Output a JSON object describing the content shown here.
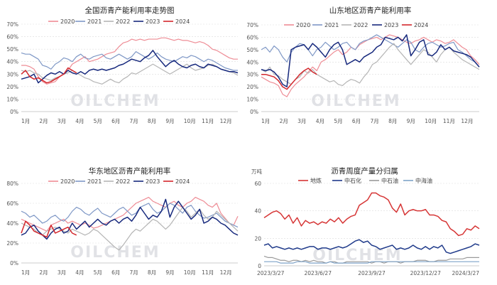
{
  "watermark": "OILCHEM",
  "colors": {
    "s2020": "#ee8c95",
    "s2021": "#7f98c6",
    "s2022": "#b5b5b5",
    "s2023": "#17297d",
    "s2024": "#d3262b",
    "dilian": "#d63535",
    "zhongshihua": "#1f3a8a",
    "zhongshiyou": "#9a9a9a",
    "zhonghaiyou": "#7fa3c8"
  },
  "chart_data": [
    {
      "id": "national",
      "type": "line",
      "title": "全国沥青产能利用率走势图",
      "x_tick_labels": [
        "1月",
        "2月",
        "3月",
        "4月",
        "5月",
        "6月",
        "7月",
        "8月",
        "9月",
        "10月",
        "11月",
        "12月"
      ],
      "x_range": [
        0,
        51
      ],
      "y_ticks": [
        "0%",
        "10%",
        "20%",
        "30%",
        "40%",
        "50%",
        "60%",
        "70%"
      ],
      "ylim": [
        0,
        70
      ],
      "legend": [
        "2020",
        "2021",
        "2022",
        "2023",
        "2024"
      ],
      "series": [
        {
          "name": "2020",
          "values": [
            37,
            37,
            36,
            34,
            28,
            24,
            22,
            23,
            24,
            28,
            30,
            33,
            38,
            40,
            42,
            44,
            40,
            41,
            42,
            44,
            46,
            47,
            48,
            52,
            55,
            56,
            58,
            57,
            58,
            57,
            58,
            58,
            58,
            59,
            59,
            58,
            57,
            58,
            57,
            57,
            56,
            55,
            56,
            55,
            53,
            50,
            49,
            47,
            45,
            43,
            42,
            42
          ]
        },
        {
          "name": "2021",
          "values": [
            47,
            46,
            46,
            44,
            42,
            37,
            36,
            34,
            38,
            40,
            43,
            42,
            40,
            44,
            46,
            43,
            42,
            44,
            45,
            46,
            43,
            42,
            44,
            46,
            44,
            42,
            44,
            48,
            46,
            44,
            42,
            44,
            47,
            44,
            42,
            41,
            40,
            42,
            44,
            43,
            45,
            44,
            42,
            40,
            42,
            41,
            39,
            37,
            35,
            34,
            33,
            33
          ]
        },
        {
          "name": "2022",
          "values": [
            33,
            32,
            33,
            31,
            30,
            27,
            26,
            25,
            27,
            28,
            30,
            31,
            33,
            31,
            29,
            27,
            26,
            24,
            23,
            22,
            24,
            26,
            24,
            23,
            26,
            28,
            31,
            30,
            32,
            34,
            36,
            38,
            36,
            34,
            32,
            30,
            32,
            34,
            36,
            38,
            35,
            33,
            34,
            35,
            37,
            38,
            36,
            34,
            33,
            32,
            31,
            29
          ]
        },
        {
          "name": "2023",
          "values": [
            26,
            27,
            28,
            30,
            23,
            26,
            29,
            31,
            30,
            32,
            30,
            33,
            31,
            30,
            32,
            30,
            33,
            34,
            33,
            34,
            33,
            34,
            35,
            37,
            38,
            40,
            42,
            41,
            40,
            43,
            45,
            49,
            44,
            40,
            36,
            39,
            41,
            38,
            36,
            35,
            37,
            38,
            36,
            35,
            38,
            37,
            36,
            34,
            33,
            32,
            32,
            31
          ]
        },
        {
          "name": "2024",
          "values": [
            30,
            33,
            28,
            26,
            27,
            25,
            23,
            24,
            26,
            28,
            30,
            35,
            33,
            31
          ]
        }
      ]
    },
    {
      "id": "shandong",
      "type": "line",
      "title": "山东地区沥青产能利用率",
      "x_tick_labels": [
        "1月",
        "2月",
        "3月",
        "4月",
        "5月",
        "6月",
        "7月",
        "8月",
        "9月",
        "10月",
        "11月",
        "12月"
      ],
      "x_range": [
        0,
        51
      ],
      "y_ticks": [
        "0%",
        "10%",
        "20%",
        "30%",
        "40%",
        "50%",
        "60%",
        "70%"
      ],
      "ylim": [
        0,
        70
      ],
      "legend": [
        "2020",
        "2021",
        "2022",
        "2023",
        "2024"
      ],
      "series": [
        {
          "name": "2020",
          "values": [
            28,
            26,
            24,
            23,
            21,
            14,
            12,
            18,
            22,
            25,
            28,
            32,
            36,
            33,
            40,
            42,
            45,
            48,
            50,
            46,
            48,
            52,
            50,
            54,
            56,
            58,
            59,
            60,
            58,
            60,
            62,
            61,
            60,
            58,
            56,
            55,
            57,
            58,
            60,
            58,
            56,
            58,
            57,
            55,
            56,
            58,
            55,
            52,
            50,
            45,
            42,
            38
          ]
        },
        {
          "name": "2021",
          "values": [
            50,
            52,
            48,
            53,
            50,
            44,
            40,
            48,
            52,
            55,
            54,
            50,
            45,
            50,
            52,
            56,
            53,
            50,
            52,
            55,
            56,
            52,
            50,
            55,
            57,
            58,
            60,
            62,
            60,
            58,
            56,
            54,
            52,
            55,
            58,
            56,
            50,
            48,
            52,
            55,
            56,
            54,
            52,
            53,
            55,
            56,
            50,
            48,
            45,
            42,
            40,
            36
          ]
        },
        {
          "name": "2022",
          "values": [
            34,
            32,
            36,
            30,
            29,
            26,
            24,
            22,
            26,
            28,
            33,
            31,
            34,
            30,
            28,
            26,
            24,
            25,
            22,
            21,
            24,
            26,
            25,
            23,
            28,
            32,
            38,
            40,
            44,
            48,
            52,
            55,
            50,
            46,
            42,
            38,
            42,
            46,
            50,
            48,
            44,
            40,
            46,
            50,
            52,
            48,
            45,
            42,
            40,
            38,
            36,
            34
          ]
        },
        {
          "name": "2023",
          "values": [
            34,
            33,
            34,
            32,
            28,
            22,
            20,
            50,
            52,
            53,
            54,
            50,
            55,
            52,
            48,
            44,
            50,
            54,
            56,
            50,
            38,
            40,
            42,
            40,
            44,
            46,
            48,
            52,
            54,
            60,
            59,
            58,
            60,
            57,
            62,
            45,
            50,
            56,
            58,
            46,
            45,
            48,
            54,
            50,
            52,
            49,
            48,
            47,
            46,
            44,
            40,
            36
          ]
        },
        {
          "name": "2024",
          "values": [
            30,
            30,
            29,
            28,
            25,
            20,
            18,
            22,
            26,
            30,
            33,
            35,
            32,
            30
          ]
        }
      ]
    },
    {
      "id": "huadong",
      "type": "line",
      "title": "华东地区沥青产能利用率",
      "x_tick_labels": [
        "1月",
        "2月",
        "3月",
        "4月",
        "5月",
        "6月",
        "7月",
        "8月",
        "9月",
        "10月",
        "11月",
        "12月"
      ],
      "x_range": [
        0,
        51
      ],
      "y_ticks": [
        "0%",
        "20%",
        "40%",
        "60%",
        "80%"
      ],
      "ylim": [
        0,
        80
      ],
      "legend": [
        "2020",
        "2021",
        "2022",
        "2023",
        "2024"
      ],
      "series": [
        {
          "name": "2020",
          "values": [
            44,
            42,
            40,
            38,
            36,
            34,
            32,
            38,
            40,
            42,
            44,
            40,
            42,
            40,
            38,
            40,
            38,
            35,
            36,
            38,
            40,
            42,
            44,
            46,
            48,
            52,
            56,
            60,
            62,
            64,
            66,
            62,
            60,
            58,
            56,
            60,
            62,
            58,
            56,
            60,
            62,
            66,
            64,
            62,
            58,
            56,
            60,
            50,
            45,
            40,
            38,
            47
          ]
        },
        {
          "name": "2021",
          "values": [
            52,
            50,
            46,
            48,
            44,
            40,
            42,
            46,
            48,
            44,
            42,
            46,
            52,
            56,
            54,
            50,
            48,
            52,
            55,
            50,
            48,
            46,
            50,
            54,
            56,
            52,
            48,
            50,
            56,
            58,
            60,
            54,
            50,
            52,
            56,
            60,
            58,
            54,
            50,
            56,
            58,
            52,
            48,
            45,
            46,
            48,
            50,
            46,
            42,
            40,
            38,
            36
          ]
        },
        {
          "name": "2022",
          "values": [
            40,
            38,
            36,
            34,
            30,
            28,
            32,
            34,
            36,
            34,
            32,
            30,
            34,
            32,
            30,
            28,
            30,
            34,
            32,
            28,
            24,
            20,
            16,
            13,
            18,
            24,
            30,
            34,
            32,
            36,
            40,
            44,
            42,
            38,
            34,
            38,
            44,
            50,
            56,
            52,
            46,
            50,
            54,
            48,
            44,
            46,
            52,
            48,
            44,
            40,
            36,
            32
          ]
        },
        {
          "name": "2023",
          "values": [
            28,
            30,
            36,
            38,
            32,
            28,
            24,
            30,
            34,
            36,
            30,
            32,
            40,
            34,
            38,
            42,
            36,
            40,
            44,
            40,
            38,
            42,
            44,
            40,
            44,
            46,
            42,
            48,
            56,
            50,
            44,
            48,
            46,
            52,
            64,
            46,
            56,
            62,
            56,
            50,
            44,
            48,
            54,
            40,
            42,
            46,
            44,
            40,
            38,
            34,
            30,
            28
          ]
        },
        {
          "name": "2024",
          "values": [
            30,
            42,
            38,
            32,
            30,
            28,
            26,
            38,
            30,
            32,
            34,
            36,
            30,
            28
          ]
        }
      ]
    },
    {
      "id": "weekly",
      "type": "line",
      "title": "沥青周度产量分归属",
      "y_unit": "万吨",
      "x_tick_labels": [
        "2023/3/27",
        "2023/6/27",
        "2023/9/27",
        "2023/12/27",
        "2024/3/27"
      ],
      "x_tick_positions": [
        0,
        13,
        26,
        39,
        52
      ],
      "x_range": [
        0,
        52
      ],
      "y_ticks": [
        "0",
        "20",
        "40",
        "60"
      ],
      "ylim": [
        0,
        60
      ],
      "legend": [
        "地炼",
        "中石化",
        "中石油",
        "中海油"
      ],
      "series": [
        {
          "name": "地炼",
          "values": [
            35,
            37,
            39,
            40,
            38,
            34,
            37,
            31,
            35,
            29,
            33,
            31,
            32,
            30,
            32,
            31,
            34,
            32,
            35,
            31,
            34,
            36,
            37,
            44,
            46,
            48,
            53,
            53,
            51,
            50,
            48,
            42,
            39,
            45,
            37,
            40,
            41,
            40,
            40,
            41,
            37,
            37,
            36,
            33,
            32,
            27,
            25,
            22,
            23,
            27,
            26,
            29,
            27
          ]
        },
        {
          "name": "中石化",
          "values": [
            15,
            16,
            13,
            14,
            13,
            12,
            13,
            12,
            13,
            12,
            13,
            14,
            14,
            12,
            13,
            13,
            12,
            13,
            14,
            13,
            14,
            16,
            18,
            19,
            17,
            18,
            15,
            14,
            12,
            13,
            14,
            15,
            12,
            13,
            12,
            13,
            15,
            13,
            12,
            14,
            12,
            14,
            13,
            15,
            10,
            9,
            10,
            11,
            12,
            13,
            14,
            16,
            15
          ]
        },
        {
          "name": "中石油",
          "values": [
            7,
            6,
            6,
            5,
            4,
            4,
            3,
            4,
            4,
            3,
            4,
            3,
            4,
            3,
            3,
            2,
            3,
            3,
            2,
            2,
            3,
            3,
            3,
            3,
            3,
            3,
            2,
            3,
            3,
            2,
            3,
            3,
            3,
            2,
            3,
            3,
            3,
            4,
            4,
            4,
            3,
            3,
            4,
            4,
            4,
            5,
            5,
            5,
            5,
            6,
            6,
            6,
            6
          ]
        },
        {
          "name": "中海油",
          "values": [
            3,
            3,
            3,
            3,
            2,
            2,
            2,
            2,
            3,
            3,
            3,
            2,
            2,
            2,
            2,
            2,
            3,
            2,
            2,
            2,
            2,
            2,
            2,
            2,
            2,
            2,
            3,
            3,
            3,
            3,
            3,
            3,
            3,
            3,
            3,
            3,
            3,
            3,
            3,
            3,
            3,
            3,
            3,
            3,
            3,
            3,
            3,
            3,
            3,
            3,
            3,
            3,
            3
          ]
        }
      ]
    }
  ]
}
